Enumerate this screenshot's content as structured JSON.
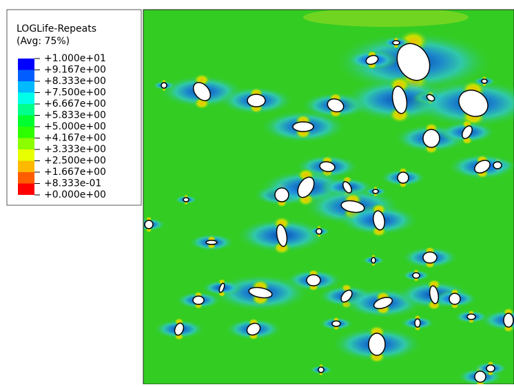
{
  "legend": {
    "title": "LOGLife-Repeats",
    "subtitle": "(Avg: 75%)",
    "levels": [
      "+1.000e+01",
      "+9.167e+00",
      "+8.333e+00",
      "+7.500e+00",
      "+6.667e+00",
      "+5.833e+00",
      "+5.000e+00",
      "+4.167e+00",
      "+3.333e+00",
      "+2.500e+00",
      "+1.667e+00",
      "+8.333e-01",
      "+0.000e+00"
    ],
    "colors": [
      "#0000ff",
      "#005dff",
      "#00b9ff",
      "#00ffe8",
      "#00ff8b",
      "#00ff2e",
      "#2eff00",
      "#8bff00",
      "#e8ff00",
      "#ffb900",
      "#ff5d00",
      "#ff0000"
    ]
  }
}
